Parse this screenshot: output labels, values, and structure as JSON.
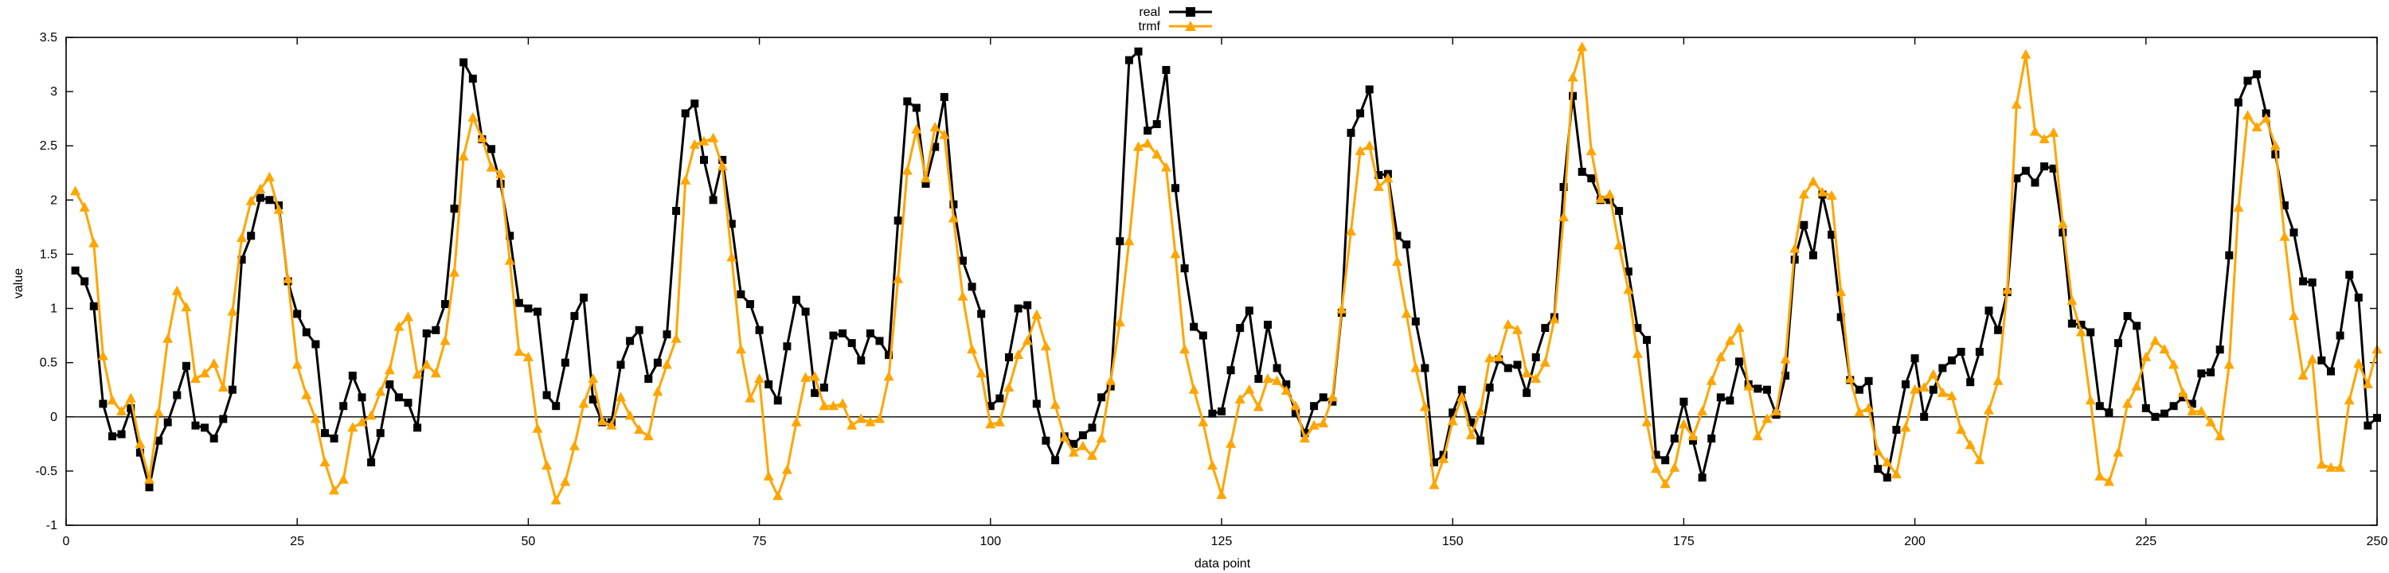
{
  "chart_data": {
    "type": "line",
    "title": "",
    "xlabel": "data point",
    "ylabel": "value",
    "xlim": [
      0,
      250
    ],
    "ylim": [
      -1,
      3.5
    ],
    "x_ticks": [
      0,
      25,
      50,
      75,
      100,
      125,
      150,
      175,
      200,
      225,
      250
    ],
    "y_ticks": [
      -1,
      -0.5,
      0,
      0.5,
      1,
      1.5,
      2,
      2.5,
      3,
      3.5
    ],
    "zero_line": true,
    "grid": false,
    "legend_position": "top-center",
    "series": [
      {
        "name": "real",
        "color": "#000000",
        "marker": "square",
        "values": [
          1.35,
          1.25,
          1.02,
          0.12,
          -0.18,
          -0.16,
          0.08,
          -0.33,
          -0.65,
          -0.22,
          -0.05,
          0.2,
          0.47,
          -0.08,
          -0.1,
          -0.2,
          -0.02,
          0.25,
          1.45,
          1.67,
          2.02,
          2.0,
          1.95,
          1.25,
          0.95,
          0.78,
          0.67,
          -0.15,
          -0.2,
          0.1,
          0.38,
          0.18,
          -0.42,
          -0.15,
          0.3,
          0.18,
          0.13,
          -0.1,
          0.77,
          0.8,
          1.04,
          1.92,
          3.27,
          3.12,
          2.56,
          2.47,
          2.15,
          1.67,
          1.05,
          1.0,
          0.97,
          0.2,
          0.1,
          0.5,
          0.93,
          1.1,
          0.16,
          -0.05,
          -0.05,
          0.48,
          0.7,
          0.8,
          0.35,
          0.5,
          0.76,
          1.9,
          2.8,
          2.89,
          2.37,
          2.0,
          2.37,
          1.78,
          1.13,
          1.04,
          0.8,
          0.3,
          0.15,
          0.65,
          1.08,
          0.97,
          0.22,
          0.27,
          0.75,
          0.77,
          0.68,
          0.52,
          0.77,
          0.7,
          0.57,
          1.81,
          2.91,
          2.85,
          2.15,
          2.49,
          2.95,
          1.96,
          1.44,
          1.2,
          0.95,
          0.1,
          0.17,
          0.55,
          1.0,
          1.03,
          0.12,
          -0.22,
          -0.4,
          -0.18,
          -0.25,
          -0.17,
          -0.1,
          0.18,
          0.28,
          1.62,
          3.29,
          3.37,
          2.64,
          2.7,
          3.2,
          2.11,
          1.37,
          0.83,
          0.75,
          0.03,
          0.05,
          0.43,
          0.82,
          0.98,
          0.35,
          0.85,
          0.45,
          0.3,
          0.04,
          -0.15,
          0.1,
          0.18,
          0.14,
          0.96,
          2.62,
          2.8,
          3.02,
          2.23,
          2.24,
          1.67,
          1.59,
          0.88,
          0.45,
          -0.42,
          -0.35,
          0.04,
          0.25,
          -0.05,
          -0.22,
          0.27,
          0.53,
          0.45,
          0.48,
          0.22,
          0.55,
          0.82,
          0.92,
          2.12,
          2.96,
          2.26,
          2.2,
          2.0,
          2.0,
          1.9,
          1.34,
          0.82,
          0.71,
          -0.35,
          -0.4,
          -0.2,
          0.14,
          -0.22,
          -0.56,
          -0.2,
          0.18,
          0.15,
          0.51,
          0.3,
          0.26,
          0.25,
          0.02,
          0.38,
          1.45,
          1.77,
          1.49,
          2.05,
          1.68,
          0.92,
          0.34,
          0.25,
          0.33,
          -0.48,
          -0.56,
          -0.12,
          0.3,
          0.54,
          0.0,
          0.25,
          0.45,
          0.52,
          0.6,
          0.32,
          0.6,
          0.98,
          0.8,
          1.15,
          2.2,
          2.27,
          2.16,
          2.31,
          2.29,
          1.7,
          0.86,
          0.85,
          0.78,
          0.1,
          0.04,
          0.68,
          0.93,
          0.84,
          0.08,
          0.0,
          0.03,
          0.1,
          0.18,
          0.12,
          0.4,
          0.41,
          0.62,
          1.49,
          2.9,
          3.1,
          3.16,
          2.8,
          2.42,
          1.95,
          1.7,
          1.25,
          1.24,
          0.52,
          0.42,
          0.75,
          1.31,
          1.1,
          -0.08,
          -0.01
        ]
      },
      {
        "name": "trmf",
        "color": "#FFA500",
        "marker": "triangle",
        "values": [
          2.08,
          1.93,
          1.6,
          0.56,
          0.15,
          0.05,
          0.17,
          -0.25,
          -0.58,
          0.04,
          0.72,
          1.16,
          1.01,
          0.35,
          0.4,
          0.49,
          0.27,
          0.97,
          1.65,
          1.99,
          2.1,
          2.21,
          1.91,
          1.27,
          0.48,
          0.2,
          -0.02,
          -0.42,
          -0.68,
          -0.58,
          -0.1,
          -0.05,
          0.01,
          0.23,
          0.43,
          0.83,
          0.92,
          0.39,
          0.48,
          0.4,
          0.7,
          1.33,
          2.4,
          2.76,
          2.57,
          2.3,
          2.24,
          1.44,
          0.6,
          0.55,
          -0.11,
          -0.45,
          -0.77,
          -0.6,
          -0.27,
          0.12,
          0.35,
          -0.04,
          -0.08,
          0.18,
          0.01,
          -0.12,
          -0.18,
          0.23,
          0.48,
          0.72,
          2.18,
          2.51,
          2.54,
          2.57,
          2.31,
          1.47,
          0.62,
          0.17,
          0.35,
          -0.55,
          -0.73,
          -0.49,
          -0.05,
          0.36,
          0.37,
          0.1,
          0.1,
          0.12,
          -0.08,
          -0.02,
          -0.05,
          -0.02,
          0.37,
          1.27,
          2.27,
          2.65,
          2.2,
          2.67,
          2.6,
          1.83,
          1.11,
          0.62,
          0.4,
          -0.07,
          -0.05,
          0.27,
          0.57,
          0.7,
          0.94,
          0.65,
          0.11,
          -0.19,
          -0.33,
          -0.27,
          -0.36,
          -0.2,
          0.33,
          0.87,
          1.62,
          2.49,
          2.52,
          2.42,
          2.3,
          1.5,
          0.62,
          0.25,
          -0.05,
          -0.45,
          -0.72,
          -0.25,
          0.16,
          0.25,
          0.09,
          0.35,
          0.33,
          0.24,
          0.1,
          -0.2,
          -0.08,
          -0.06,
          0.18,
          0.99,
          1.71,
          2.45,
          2.5,
          2.12,
          2.2,
          1.43,
          0.95,
          0.45,
          0.09,
          -0.63,
          -0.39,
          -0.04,
          0.18,
          -0.17,
          0.05,
          0.54,
          0.55,
          0.85,
          0.8,
          0.4,
          0.35,
          0.5,
          0.9,
          1.84,
          3.13,
          3.41,
          2.45,
          2.01,
          2.05,
          1.58,
          1.17,
          0.58,
          -0.05,
          -0.48,
          -0.62,
          -0.47,
          -0.07,
          -0.18,
          0.05,
          0.33,
          0.55,
          0.7,
          0.82,
          0.28,
          -0.18,
          -0.02,
          0.05,
          0.53,
          1.55,
          2.05,
          2.17,
          2.07,
          2.04,
          1.15,
          0.35,
          0.04,
          0.08,
          -0.32,
          -0.42,
          -0.53,
          -0.1,
          0.25,
          0.27,
          0.39,
          0.22,
          0.19,
          -0.12,
          -0.26,
          -0.4,
          0.06,
          0.33,
          1.17,
          2.88,
          3.34,
          2.63,
          2.56,
          2.62,
          1.78,
          1.07,
          0.78,
          0.15,
          -0.55,
          -0.6,
          -0.33,
          0.12,
          0.28,
          0.55,
          0.7,
          0.62,
          0.48,
          0.22,
          0.05,
          0.05,
          -0.05,
          -0.18,
          0.48,
          1.93,
          2.78,
          2.67,
          2.75,
          2.5,
          1.66,
          0.93,
          0.38,
          0.53,
          -0.44,
          -0.47,
          -0.47,
          0.15,
          0.49,
          0.3,
          0.62
        ]
      }
    ]
  }
}
